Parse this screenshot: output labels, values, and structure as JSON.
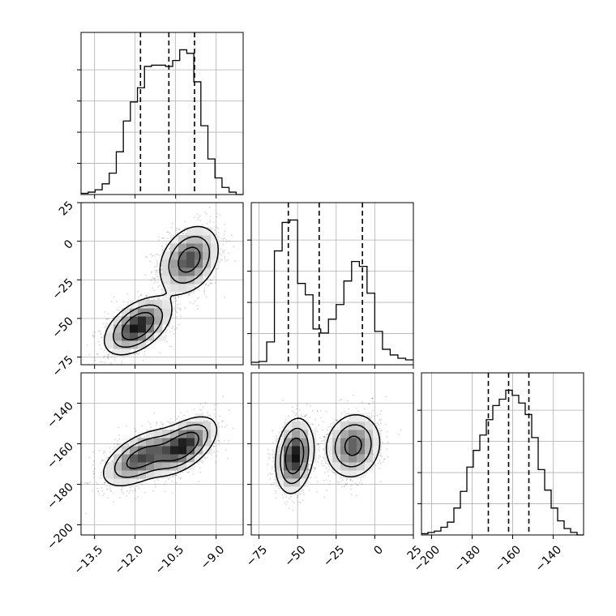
{
  "chart_data": {
    "type": "corner",
    "grid": true,
    "quantiles": [
      0.16,
      0.5,
      0.84
    ],
    "levels": [
      0.39,
      0.86,
      0.99
    ],
    "params": [
      {
        "name": "",
        "range": [
          -14.0,
          -8.0
        ],
        "ticks": [
          -13.5,
          -12.0,
          -10.5,
          -9.0
        ],
        "tick_labels": [
          "−13.5",
          "−12.0",
          "−10.5",
          "−9.0"
        ],
        "quantile_values": [
          -11.8,
          -10.75,
          -9.8
        ],
        "hist_edges_range": [
          -14.0,
          -8.0
        ],
        "hist_counts": [
          1,
          2,
          4,
          9,
          18,
          36,
          62,
          78,
          90,
          108,
          109,
          109,
          108,
          113,
          122,
          119,
          95,
          58,
          30,
          14,
          6,
          2,
          0
        ]
      },
      {
        "name": "",
        "range": [
          -80,
          25
        ],
        "ticks": [
          -75,
          -50,
          -25,
          0,
          25
        ],
        "tick_labels": [
          "−75",
          "−50",
          "−25",
          "0",
          "25"
        ],
        "quantile_values": [
          -56,
          -36,
          -8
        ],
        "hist_counts": [
          3,
          4,
          28,
          140,
          175,
          178,
          100,
          86,
          44,
          39,
          56,
          74,
          103,
          127,
          121,
          88,
          41,
          19,
          12,
          8,
          6
        ]
      },
      {
        "name": "",
        "range": [
          -205,
          -125
        ],
        "ticks": [
          -200,
          -180,
          -160,
          -140
        ],
        "tick_labels": [
          "−200",
          "−180",
          "−160",
          "−140"
        ],
        "quantile_values": [
          -172,
          -162,
          -152
        ],
        "hist_counts": [
          1,
          2,
          3,
          6,
          10,
          21,
          34,
          53,
          66,
          78,
          90,
          101,
          106,
          113,
          109,
          103,
          94,
          76,
          51,
          35,
          21,
          11,
          5,
          2,
          0
        ]
      }
    ],
    "pairs": [
      {
        "x_param": 0,
        "y_param": 1,
        "modes": [
          {
            "mean": [
              -11.9,
              -55
            ],
            "sd": [
              0.6,
              9
            ],
            "rho": 0.5,
            "weight": 0.5
          },
          {
            "mean": [
              -10.0,
              -12
            ],
            "sd": [
              0.55,
              11
            ],
            "rho": 0.3,
            "weight": 0.5
          }
        ]
      },
      {
        "x_param": 0,
        "y_param": 2,
        "modes": [
          {
            "mean": [
              -11.8,
              -167
            ],
            "sd": [
              0.7,
              7
            ],
            "rho": 0.55,
            "weight": 0.5
          },
          {
            "mean": [
              -10.2,
              -161
            ],
            "sd": [
              0.6,
              7
            ],
            "rho": 0.55,
            "weight": 0.5
          }
        ]
      },
      {
        "x_param": 1,
        "y_param": 2,
        "modes": [
          {
            "mean": [
              -52,
              -166
            ],
            "sd": [
              6,
              9
            ],
            "rho": 0.2,
            "weight": 0.5
          },
          {
            "mean": [
              -14,
              -161
            ],
            "sd": [
              9,
              8
            ],
            "rho": 0.1,
            "weight": 0.5
          }
        ]
      }
    ]
  }
}
